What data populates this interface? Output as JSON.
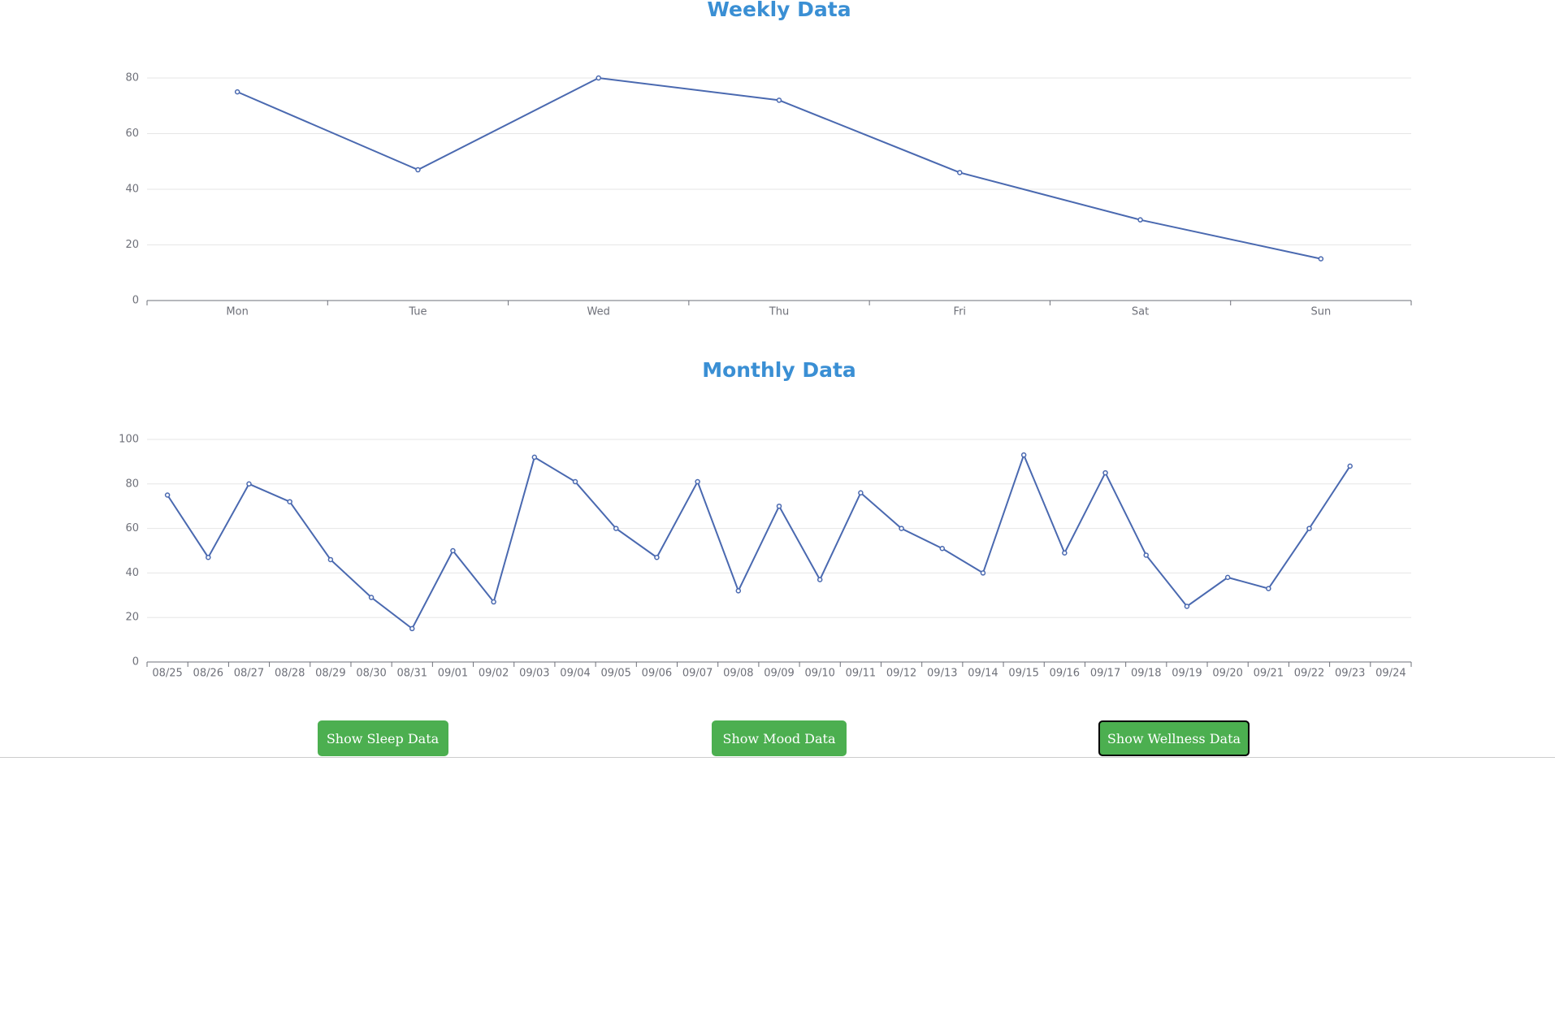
{
  "chart_data": [
    {
      "type": "line",
      "title": "Weekly Data",
      "categories": [
        "Mon",
        "Tue",
        "Wed",
        "Thu",
        "Fri",
        "Sat",
        "Sun"
      ],
      "series": [
        {
          "color": "#4a69b0",
          "values": [
            75,
            47,
            80,
            72,
            46,
            29,
            15
          ]
        }
      ],
      "ylim": [
        0,
        80
      ],
      "yticks": [
        0,
        20,
        40,
        60,
        80
      ],
      "grid": true
    },
    {
      "type": "line",
      "title": "Monthly Data",
      "categories": [
        "08/25",
        "08/26",
        "08/27",
        "08/28",
        "08/29",
        "08/30",
        "08/31",
        "09/01",
        "09/02",
        "09/03",
        "09/04",
        "09/05",
        "09/06",
        "09/07",
        "09/08",
        "09/09",
        "09/10",
        "09/11",
        "09/12",
        "09/13",
        "09/14",
        "09/15",
        "09/16",
        "09/17",
        "09/18",
        "09/19",
        "09/20",
        "09/21",
        "09/22",
        "09/23",
        "09/24"
      ],
      "series": [
        {
          "color": "#4a69b0",
          "values": [
            75,
            47,
            80,
            72,
            46,
            29,
            15,
            50,
            27,
            92,
            81,
            60,
            47,
            81,
            32,
            70,
            37,
            76,
            60,
            51,
            40,
            93,
            49,
            85,
            48,
            25,
            38,
            33,
            60,
            88,
            null
          ]
        }
      ],
      "ylim": [
        0,
        100
      ],
      "yticks": [
        0,
        20,
        40,
        60,
        80,
        100
      ],
      "grid": true
    }
  ],
  "buttons": [
    "Show Sleep Data",
    "Show Mood Data",
    "Show Wellness Data"
  ]
}
